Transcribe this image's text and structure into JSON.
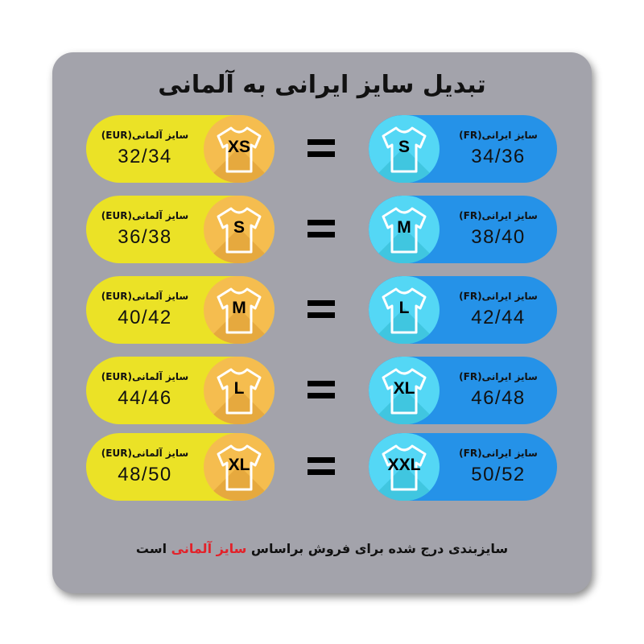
{
  "title": "تبدیل سایز ایرانی به آلمانی",
  "german_label": "سایز آلمانی(EUR)",
  "iranian_label": "سایز ایرانی(FR)",
  "equals": "=",
  "rows": [
    {
      "german_size": "XS",
      "german_value": "32/34",
      "iranian_size": "S",
      "iranian_value": "34/36"
    },
    {
      "german_size": "S",
      "german_value": "36/38",
      "iranian_size": "M",
      "iranian_value": "38/40"
    },
    {
      "german_size": "M",
      "german_value": "40/42",
      "iranian_size": "L",
      "iranian_value": "42/44"
    },
    {
      "german_size": "L",
      "german_value": "44/46",
      "iranian_size": "XL",
      "iranian_value": "46/48"
    },
    {
      "german_size": "XL",
      "german_value": "48/50",
      "iranian_size": "XXL",
      "iranian_value": "50/52"
    }
  ],
  "footer": {
    "before": "سایزبندی درج شده برای فروش براساس ",
    "highlight": "سایز آلمانی",
    "after": " است"
  },
  "colors": {
    "card": "#a3a3ab",
    "german_pill": "#ebe226",
    "german_circle": "#f5bd4f",
    "iranian_pill": "#2592e8",
    "iranian_circle": "#54d7f5",
    "highlight": "#e2222a"
  },
  "icons": {
    "shirt": "tshirt-icon"
  }
}
